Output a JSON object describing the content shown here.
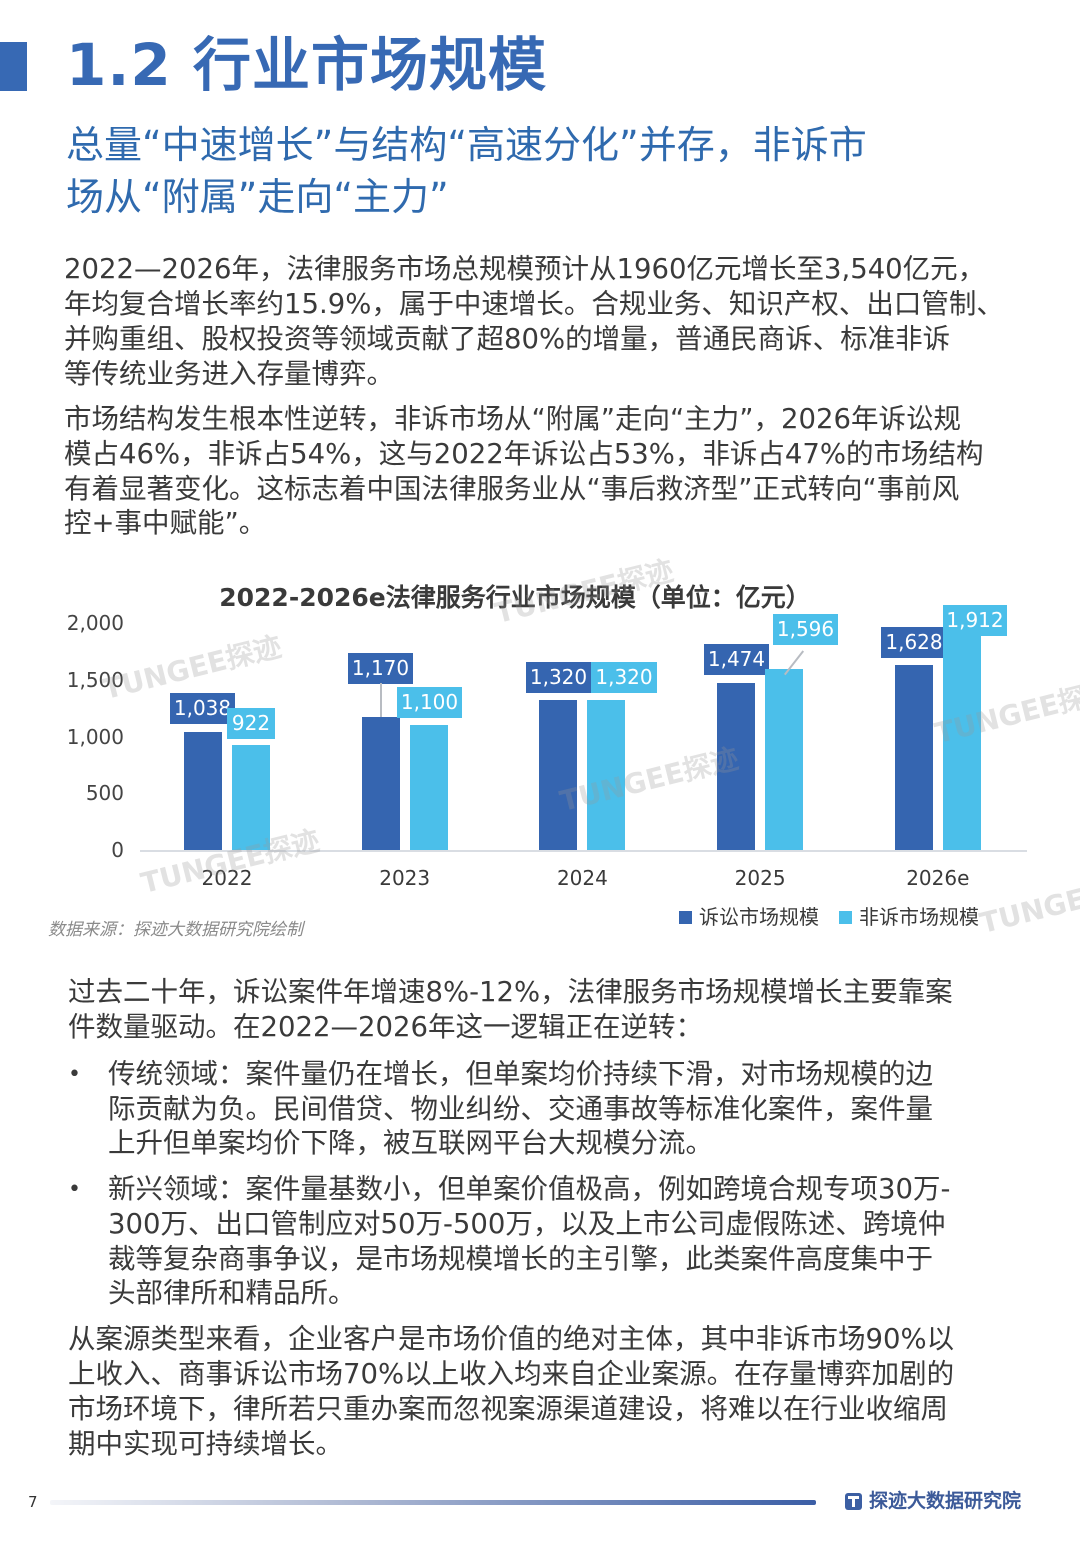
{
  "header": {
    "title": "1.2 行业市场规模",
    "subtitle_lines": [
      "总量“中速增长”与结构“高速分化”并存，非诉市",
      "场从“附属”走向“主力”"
    ]
  },
  "main": {
    "paragraphs": [
      {
        "lines": [
          "2022—2026年，法律服务市场总规模预计从1960亿元增长至3,540亿元，",
          "年均复合增长率约15.9%，属于中速增长。合规业务、知识产权、出口管制、",
          "并购重组、股权投资等领域贡献了超80%的增量，普通民商诉、标准非诉",
          "等传统业务进入存量博弈。"
        ]
      },
      {
        "lines": [
          "市场结构发生根本性逆转，非诉市场从“附属”走向“主力”，2026年诉讼规",
          "模占46%，非诉占54%，这与2022年诉讼占53%，非诉占47%的市场结构",
          "有着显著变化。这标志着中国法律服务业从“事后救济型”正式转向“事前风",
          "控+事中赋能”。"
        ]
      },
      {
        "lines": [
          "过去二十年，诉讼案件年增速8%-12%，法律服务市场规模增长主要靠案",
          "件数量驱动。在2022—2026年这一逻辑正在逆转："
        ]
      },
      {
        "lines": [
          "从案源类型来看，企业客户是市场价值的绝对主体，其中非诉市场90%以",
          "上收入、商事诉讼市场70%以上收入均来自企业案源。在存量博弈加剧的",
          "市场环境下，律所若只重办案而忽视案源渠道建设，将难以在行业收缩周",
          "期中实现可持续增长。"
        ]
      }
    ],
    "bullets": [
      {
        "marker": "•",
        "lines": [
          "传统领域：案件量仍在增长，但单案均价持续下滑，对市场规模的边",
          "际贡献为负。民间借贷、物业纠纷、交通事故等标准化案件，案件量",
          "上升但单案均价下降，被互联网平台大规模分流。"
        ]
      },
      {
        "marker": "•",
        "lines": [
          "新兴领域：案件量基数小，但单案价值极高，例如跨境合规专项30万-",
          "300万、出口管制应对50万-500万，以及上市公司虚假陈述、跨境仲",
          "裁等复杂商事争议，是市场规模增长的主引擎，此类案件高度集中于",
          "头部律所和精品所。"
        ]
      }
    ]
  },
  "chart_data": {
    "type": "bar",
    "title": "2022-2026e法律服务行业市场规模（单位：亿元）",
    "xlabel": "",
    "ylabel": "",
    "categories": [
      "2022",
      "2023",
      "2024",
      "2025",
      "2026e"
    ],
    "series": [
      {
        "name": "诉讼市场规模",
        "color": "#3565b0",
        "values": [
          1038,
          1170,
          1320,
          1474,
          1628
        ]
      },
      {
        "name": "非诉市场规模",
        "color": "#4bbfea",
        "values": [
          922,
          1100,
          1320,
          1596,
          1912
        ]
      }
    ],
    "data_labels": [
      [
        "1,038",
        "1,170",
        "1,320",
        "1,474",
        "1,628"
      ],
      [
        "922",
        "1,100",
        "1,320",
        "1,596",
        "1,912"
      ]
    ],
    "y_ticks": [
      "0",
      "500",
      "1,000",
      "1,500",
      "2,000"
    ],
    "ylim": [
      0,
      2000
    ],
    "grid": false,
    "legend_position": "bottom-right",
    "source": "数据来源：探迹大数据研究院绘制",
    "watermark": "TUNGEE探迹"
  },
  "footer": {
    "page_number": "7",
    "brand": "探迹大数据研究院"
  }
}
